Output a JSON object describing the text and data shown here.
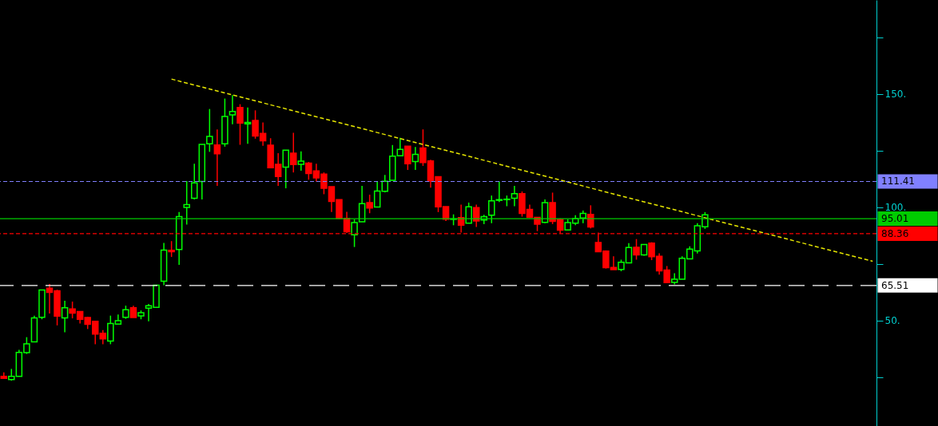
{
  "chart_data": {
    "type": "candlestick",
    "categories": [
      null,
      null,
      null,
      null,
      null,
      null,
      null,
      null,
      null,
      null,
      null,
      null,
      null,
      null,
      null,
      null,
      null,
      null,
      null,
      null,
      null,
      null,
      null,
      null,
      null,
      null,
      null,
      null,
      null,
      null,
      null,
      null,
      null,
      null,
      null,
      null,
      null,
      null,
      null,
      null,
      null,
      null,
      null,
      null,
      null,
      null,
      null,
      null,
      null,
      null,
      null,
      null,
      null,
      null,
      null,
      null,
      null,
      null,
      null,
      null,
      null,
      null,
      null,
      null,
      null,
      null,
      null,
      null,
      null,
      null,
      null,
      null,
      null,
      null,
      null,
      null,
      null,
      null,
      null,
      null,
      null,
      null,
      null,
      null,
      null,
      null,
      null,
      null,
      null,
      null,
      null,
      null,
      null,
      null,
      null,
      null,
      null,
      null,
      null,
      null,
      null,
      null,
      null,
      null,
      null,
      null,
      null,
      null,
      null,
      null,
      null,
      null,
      null,
      null,
      null
    ],
    "ohlc": [
      [
        25.4,
        27.2,
        24.5,
        24.5
      ],
      [
        24.0,
        28.7,
        23.5,
        25.4
      ],
      [
        25.4,
        37.1,
        25.4,
        36.0
      ],
      [
        35.9,
        42.7,
        35.3,
        39.8
      ],
      [
        40.6,
        52.2,
        40.6,
        51.2
      ],
      [
        51.5,
        63.5,
        50.6,
        63.5
      ],
      [
        64.3,
        66.2,
        53.1,
        62.5
      ],
      [
        63.2,
        63.6,
        47.9,
        52.0
      ],
      [
        51.2,
        58.8,
        44.9,
        55.7
      ],
      [
        55.2,
        58.4,
        51.0,
        53.3
      ],
      [
        54.0,
        54.0,
        48.7,
        50.6
      ],
      [
        51.4,
        51.7,
        46.3,
        48.4
      ],
      [
        49.7,
        49.7,
        39.6,
        44.1
      ],
      [
        44.4,
        45.8,
        39.6,
        42.0
      ],
      [
        41.0,
        52.2,
        39.6,
        48.7
      ],
      [
        48.5,
        52.7,
        48.5,
        50.0
      ],
      [
        51.5,
        56.6,
        50.8,
        54.8
      ],
      [
        55.7,
        56.6,
        51.4,
        51.4
      ],
      [
        52.1,
        54.5,
        50.6,
        53.5
      ],
      [
        55.5,
        57.4,
        49.7,
        56.6
      ],
      [
        55.9,
        65.6,
        55.9,
        65.6
      ],
      [
        67.4,
        84.3,
        65.6,
        81.1
      ],
      [
        81.0,
        85.1,
        78.1,
        80.4
      ],
      [
        81.4,
        97.9,
        74.6,
        95.9
      ],
      [
        100.0,
        111.6,
        92.4,
        101.2
      ],
      [
        104.0,
        119.2,
        103.5,
        110.8
      ],
      [
        111.4,
        127.8,
        103.5,
        127.8
      ],
      [
        128.0,
        143.4,
        124.5,
        131.3
      ],
      [
        127.5,
        134.4,
        109.5,
        123.6
      ],
      [
        128.0,
        148.0,
        126.8,
        140.1
      ],
      [
        140.8,
        149.5,
        136.7,
        142.3
      ],
      [
        144.1,
        145.5,
        127.6,
        137.2
      ],
      [
        136.8,
        144.1,
        128.0,
        137.5
      ],
      [
        138.3,
        142.8,
        130.3,
        131.5
      ],
      [
        132.6,
        137.5,
        127.2,
        129.4
      ],
      [
        127.4,
        130.5,
        117.5,
        117.5
      ],
      [
        119.0,
        123.9,
        109.5,
        113.6
      ],
      [
        117.7,
        125.2,
        108.4,
        125.2
      ],
      [
        123.9,
        132.9,
        115.4,
        118.9
      ],
      [
        119.0,
        124.7,
        116.2,
        120.4
      ],
      [
        119.5,
        120.0,
        112.2,
        114.9
      ],
      [
        116.1,
        119.2,
        111.4,
        113.0
      ],
      [
        114.7,
        115.4,
        105.8,
        108.4
      ],
      [
        109.1,
        109.1,
        97.9,
        102.6
      ],
      [
        103.4,
        103.4,
        94.8,
        95.1
      ],
      [
        95.1,
        98.0,
        88.7,
        89.2
      ],
      [
        87.9,
        94.7,
        82.5,
        93.3
      ],
      [
        93.6,
        109.5,
        93.6,
        101.6
      ],
      [
        102.1,
        105.6,
        97.4,
        99.7
      ],
      [
        100.1,
        111.4,
        100.1,
        107.2
      ],
      [
        107.1,
        114.3,
        106.6,
        111.5
      ],
      [
        111.9,
        127.5,
        111.9,
        122.6
      ],
      [
        122.8,
        130.7,
        122.7,
        125.6
      ],
      [
        127.0,
        127.0,
        116.5,
        119.2
      ],
      [
        120.2,
        126.6,
        116.5,
        123.4
      ],
      [
        126.2,
        134.4,
        118.3,
        119.8
      ],
      [
        120.5,
        121.0,
        108.7,
        111.6
      ],
      [
        113.5,
        113.5,
        97.9,
        100.2
      ],
      [
        100.3,
        100.3,
        94.0,
        94.8
      ],
      [
        94.7,
        96.9,
        92.1,
        94.9
      ],
      [
        95.5,
        101.2,
        88.9,
        92.1
      ],
      [
        93.0,
        102.1,
        93.0,
        100.2
      ],
      [
        99.9,
        101.2,
        91.3,
        94.0
      ],
      [
        94.4,
        96.7,
        92.6,
        95.9
      ],
      [
        96.5,
        105.2,
        93.0,
        102.9
      ],
      [
        103.1,
        111.4,
        102.3,
        103.4
      ],
      [
        103.4,
        105.2,
        100.5,
        103.6
      ],
      [
        104.0,
        109.5,
        100.5,
        106.0
      ],
      [
        106.0,
        107.0,
        95.9,
        97.3
      ],
      [
        99.1,
        101.2,
        95.3,
        95.6
      ],
      [
        95.6,
        95.6,
        89.5,
        92.6
      ],
      [
        93.4,
        103.5,
        93.0,
        102.1
      ],
      [
        102.1,
        106.5,
        92.6,
        93.8
      ],
      [
        94.7,
        95.1,
        88.4,
        89.9
      ],
      [
        90.0,
        94.7,
        90.0,
        93.3
      ],
      [
        93.0,
        96.5,
        92.1,
        95.0
      ],
      [
        95.3,
        98.6,
        93.0,
        97.3
      ],
      [
        96.9,
        100.9,
        90.7,
        91.3
      ],
      [
        84.5,
        88.9,
        80.4,
        80.4
      ],
      [
        80.7,
        81.0,
        73.0,
        73.4
      ],
      [
        73.5,
        78.4,
        72.5,
        72.5
      ],
      [
        72.6,
        76.9,
        71.8,
        75.8
      ],
      [
        75.5,
        84.2,
        75.5,
        82.3
      ],
      [
        82.4,
        86.0,
        76.9,
        79.0
      ],
      [
        79.0,
        83.6,
        78.7,
        83.6
      ],
      [
        84.2,
        84.6,
        76.7,
        78.2
      ],
      [
        78.4,
        79.7,
        70.3,
        72.0
      ],
      [
        72.3,
        74.1,
        66.8,
        66.8
      ],
      [
        66.9,
        70.9,
        66.0,
        68.3
      ],
      [
        68.3,
        78.4,
        68.3,
        77.5
      ],
      [
        77.3,
        82.8,
        77.3,
        81.6
      ],
      [
        80.8,
        93.0,
        79.6,
        91.9
      ],
      [
        91.4,
        97.9,
        90.5,
        96.7
      ],
      null,
      null,
      null,
      null,
      null,
      null,
      null,
      null,
      null,
      null,
      null,
      null,
      null,
      null,
      null,
      null,
      null,
      null,
      null,
      null,
      null,
      null
    ],
    "colors": [
      "#ff0000",
      "#00ff00",
      "#00ff00",
      "#00ff00",
      "#00ff00",
      "#00ff00",
      "#ff0000",
      "#ff0000",
      "#00ff00",
      "#ff0000",
      "#ff0000",
      "#ff0000",
      "#ff0000",
      "#ff0000",
      "#00ff00",
      "#00ff00",
      "#00ff00",
      "#ff0000",
      "#00ff00",
      "#00ff00",
      "#00ff00",
      "#00ff00",
      "#ff0000",
      "#00ff00",
      "#00ff00",
      "#00ff00",
      "#00ff00",
      "#00ff00",
      "#ff0000",
      "#00ff00",
      "#00ff00",
      "#ff0000",
      "#00ff00",
      "#ff0000",
      "#ff0000",
      "#ff0000",
      "#ff0000",
      "#00ff00",
      "#ff0000",
      "#00ff00",
      "#ff0000",
      "#ff0000",
      "#ff0000",
      "#ff0000",
      "#ff0000",
      "#ff0000",
      "#00ff00",
      "#00ff00",
      "#ff0000",
      "#00ff00",
      "#00ff00",
      "#00ff00",
      "#00ff00",
      "#ff0000",
      "#00ff00",
      "#ff0000",
      "#ff0000",
      "#ff0000",
      "#ff0000",
      "#00ff00",
      "#ff0000",
      "#00ff00",
      "#ff0000",
      "#00ff00",
      "#00ff00",
      "#00ff00",
      "#00ff00",
      "#00ff00",
      "#ff0000",
      "#ff0000",
      "#ff0000",
      "#00ff00",
      "#ff0000",
      "#ff0000",
      "#00ff00",
      "#00ff00",
      "#00ff00",
      "#ff0000",
      "#ff0000",
      "#ff0000",
      "#ff0000",
      "#00ff00",
      "#00ff00",
      "#ff0000",
      "#00ff00",
      "#ff0000",
      "#ff0000",
      "#ff0000",
      "#00ff00",
      "#00ff00",
      "#00ff00",
      "#00ff00",
      "#00ff00",
      null,
      null,
      null,
      null,
      null,
      null,
      null,
      null,
      null,
      null,
      null,
      null,
      null,
      null,
      null,
      null,
      null,
      null,
      null,
      null,
      null,
      null
    ],
    "series": [
      {
        "type": "line",
        "color": "#e6e600",
        "line_style": "dotted",
        "values": [
          null,
          null,
          null,
          null,
          null,
          null,
          null,
          null,
          null,
          null,
          null,
          null,
          null,
          null,
          null,
          null,
          null,
          null,
          null,
          null,
          null,
          null,
          156.6,
          null,
          null,
          null,
          null,
          null,
          null,
          null,
          null,
          null,
          null,
          null,
          null,
          null,
          null,
          null,
          null,
          null,
          null,
          null,
          null,
          null,
          null,
          null,
          null,
          null,
          null,
          null,
          null,
          null,
          null,
          null,
          null,
          null,
          null,
          null,
          null,
          null,
          null,
          null,
          null,
          null,
          null,
          null,
          null,
          null,
          null,
          null,
          null,
          null,
          null,
          null,
          null,
          null,
          null,
          null,
          null,
          null,
          null,
          null,
          null,
          null,
          null,
          null,
          null,
          null,
          null,
          null,
          null,
          null,
          null,
          null,
          null,
          null,
          null,
          null,
          null,
          null,
          null,
          null,
          null,
          null,
          null,
          null,
          null,
          null,
          null,
          null,
          null,
          null,
          null,
          null,
          76.2
        ]
      }
    ],
    "ylim": [
      3.5,
      191.5
    ],
    "yticks": [
      {
        "value": 25,
        "label": null
      },
      {
        "value": 50,
        "label": "50."
      },
      {
        "value": 75,
        "label": null
      },
      {
        "value": 100,
        "label": "100."
      },
      {
        "value": 125,
        "label": null
      },
      {
        "value": 150,
        "label": "150."
      },
      {
        "value": 175,
        "label": null
      }
    ],
    "ref_lines": [
      {
        "axis": "y",
        "value": 111.41,
        "label": "111.41",
        "color": "#8080ff",
        "line_style": "dotted"
      },
      {
        "axis": "y",
        "value": 95.01,
        "label": "95.01",
        "color": "#00cc00",
        "line_style": "solid"
      },
      {
        "axis": "y",
        "value": 88.36,
        "label": "88.36",
        "color": "#ff0000",
        "line_style": "dotted"
      },
      {
        "axis": "y",
        "value": 65.51,
        "label": "65.51",
        "color": "#ffffff",
        "line_style": "dashed"
      }
    ],
    "tick_labels": "y"
  }
}
